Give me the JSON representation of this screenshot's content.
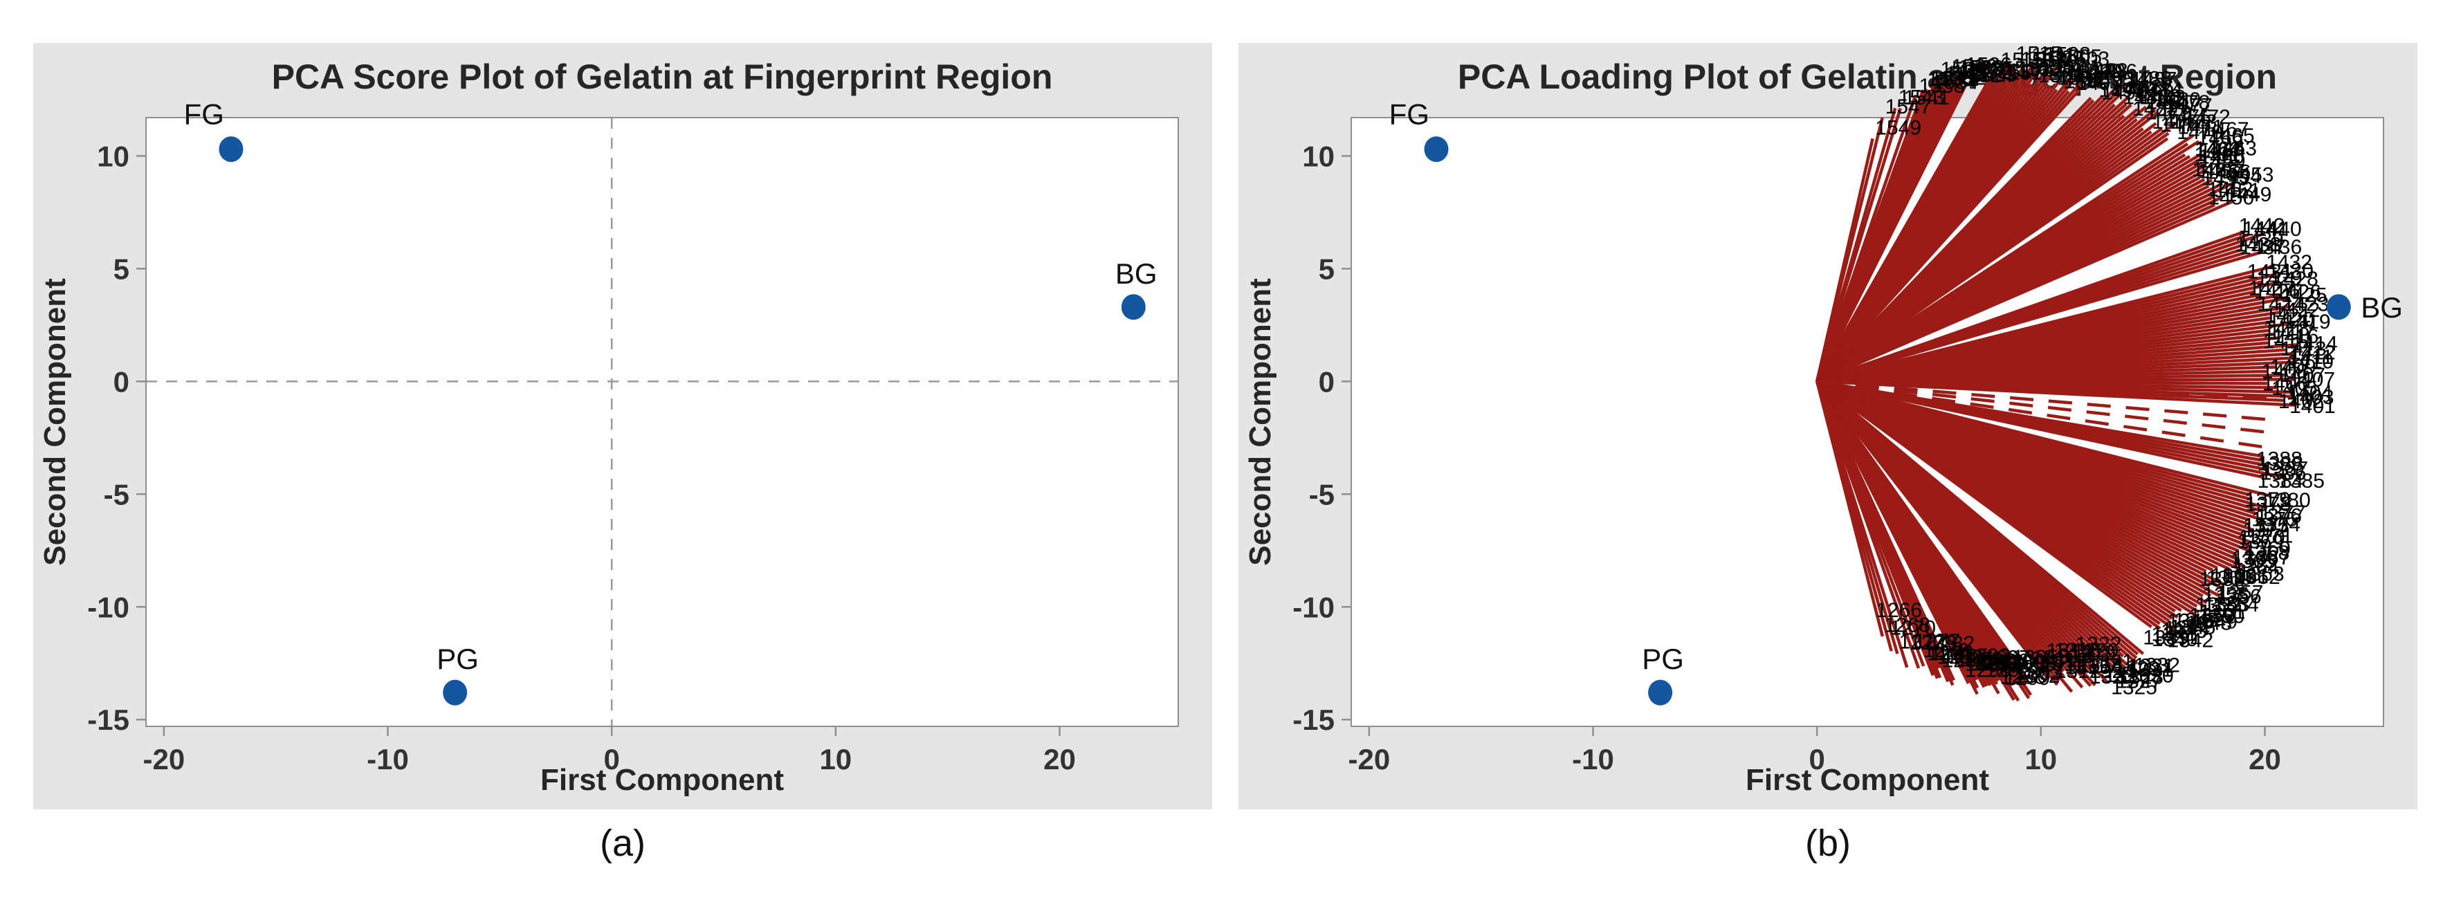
{
  "figure": {
    "captions": [
      "(a)",
      "(b)"
    ]
  },
  "colors": {
    "panel_bg": "#e5e5e5",
    "plot_bg": "#ffffff",
    "axis": "#8f8f8f",
    "tick_label": "#333333",
    "title": "#262626",
    "point": "#1556A0",
    "point_label": "#111111",
    "ref_line": "#999999",
    "loading_line": "#9B1B16",
    "loading_label": "#000000"
  },
  "chart_data": [
    {
      "type": "scatter",
      "title": "PCA Score Plot of Gelatin at Fingerprint Region",
      "xlabel": "First Component",
      "ylabel": "Second Component",
      "xlim": [
        -20.8,
        25.3
      ],
      "ylim": [
        -15.3,
        11.7
      ],
      "xticks": [
        -20,
        -10,
        0,
        10,
        20
      ],
      "yticks": [
        10,
        5,
        0,
        -5,
        -10,
        -15
      ],
      "grid": false,
      "reference_lines": {
        "x": 0,
        "y": 0,
        "style": "dashed"
      },
      "points": [
        {
          "label": "FG",
          "x": -17,
          "y": 10.3,
          "label_side": "above-left"
        },
        {
          "label": "PG",
          "x": -7,
          "y": -13.8,
          "label_side": "above"
        },
        {
          "label": "BG",
          "x": 23.3,
          "y": 3.3,
          "label_side": "above"
        }
      ]
    },
    {
      "type": "loading",
      "title": "PCA Loading Plot of Gelatin at Fingerprint Region",
      "xlabel": "First Component",
      "ylabel": "Second Component",
      "xlim": [
        -20.8,
        25.3
      ],
      "ylim": [
        -15.3,
        11.7
      ],
      "xticks": [
        -20,
        -10,
        0,
        10,
        20
      ],
      "yticks": [
        10,
        5,
        0,
        -5,
        -10,
        -15
      ],
      "grid": false,
      "points": [
        {
          "label": "FG",
          "x": -17,
          "y": 10.3,
          "label_side": "above-left"
        },
        {
          "label": "PG",
          "x": -7,
          "y": -13.8,
          "label_side": "above"
        },
        {
          "label": "BG",
          "x": 23.3,
          "y": 3.3,
          "label_side": "right"
        }
      ],
      "loadings": {
        "origin": {
          "x": 0,
          "y": 0
        },
        "count": 300,
        "angle_start_deg": 77,
        "angle_end_deg": -76,
        "max_length": 20.8,
        "length_cos_exponent": 0.4,
        "length_jitter": 0.035,
        "seed": 13,
        "gaps_deg": [
          [
            75.5,
            74.2
          ],
          [
            72.8,
            71.8
          ],
          [
            62.8,
            60.2
          ],
          [
            47.8,
            46.2
          ],
          [
            34.2,
            33.2
          ],
          [
            23.2,
            19.2
          ],
          [
            15.8,
            14.4
          ],
          [
            -3.2,
            -9.2
          ],
          [
            -12.2,
            -14.0
          ],
          [
            -36.4,
            -39.2
          ],
          [
            -52.2,
            -54.0
          ],
          [
            -63.5,
            -65.0
          ],
          [
            -70.5,
            -72.0
          ]
        ],
        "dashed_lines_deg": [
          -2.1,
          -4.8,
          -6.4,
          -8.3
        ],
        "dash_pattern": "34 22",
        "label_start": 1549,
        "label_end": 1265,
        "label_font_px": 30,
        "legible_rim_labels": [
          "15..",
          "150..",
          "1265"
        ]
      }
    }
  ]
}
